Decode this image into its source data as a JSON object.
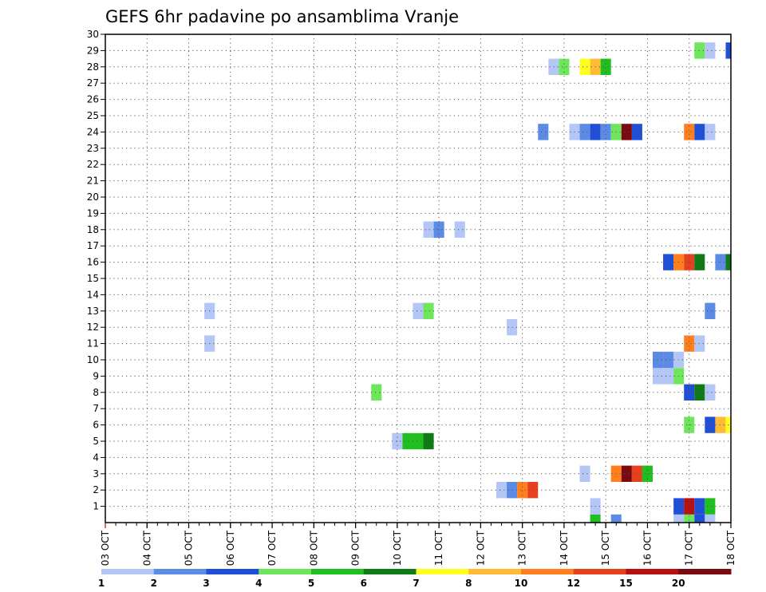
{
  "chart_data": {
    "type": "heatmap",
    "title": "GEFS 6hr padavine po ansamblima Vranje",
    "x_tick_labels": [
      "03 OCT",
      "04 OCT",
      "05 OCT",
      "06 OCT",
      "07 OCT",
      "08 OCT",
      "09 OCT",
      "10 OCT",
      "11 OCT",
      "12 OCT",
      "13 OCT",
      "14 OCT",
      "15 OCT",
      "16 OCT",
      "17 OCT",
      "18 OCT"
    ],
    "y_tick_labels": [
      "1",
      "2",
      "3",
      "4",
      "5",
      "6",
      "7",
      "8",
      "9",
      "10",
      "11",
      "12",
      "13",
      "14",
      "15",
      "16",
      "17",
      "18",
      "19",
      "20",
      "21",
      "22",
      "23",
      "24",
      "25",
      "26",
      "27",
      "28",
      "29",
      "30"
    ],
    "ylim": [
      0,
      30
    ],
    "xlim_steps": [
      0,
      60
    ],
    "grid": true,
    "colorbar": {
      "labels": [
        "1",
        "2",
        "3",
        "4",
        "5",
        "6",
        "7",
        "8",
        "10",
        "12",
        "15",
        "20"
      ],
      "colors": [
        "#b3c6f5",
        "#5c8be6",
        "#1f4fd6",
        "#6ee65c",
        "#1fbf1f",
        "#0f7a16",
        "#ffff1f",
        "#ffbb33",
        "#ff7f1f",
        "#e6401f",
        "#b80f0f",
        "#7a0a10"
      ]
    },
    "cells": [
      {
        "m": 0,
        "s": 47,
        "c": 5
      },
      {
        "m": 0,
        "s": 49,
        "c": 2
      },
      {
        "m": 0,
        "s": 55,
        "c": 1
      },
      {
        "m": 0,
        "s": 56,
        "c": 4
      },
      {
        "m": 0,
        "s": 57,
        "c": 3
      },
      {
        "m": 0,
        "s": 58,
        "c": 1
      },
      {
        "m": 1,
        "s": 47,
        "c": 1
      },
      {
        "m": 1,
        "s": 55,
        "c": 3
      },
      {
        "m": 1,
        "s": 56,
        "c": 11
      },
      {
        "m": 1,
        "s": 57,
        "c": 3
      },
      {
        "m": 1,
        "s": 58,
        "c": 5
      },
      {
        "m": 2,
        "s": 38,
        "c": 1
      },
      {
        "m": 2,
        "s": 39,
        "c": 2
      },
      {
        "m": 2,
        "s": 40,
        "c": 9
      },
      {
        "m": 2,
        "s": 41,
        "c": 10
      },
      {
        "m": 3,
        "s": 46,
        "c": 1
      },
      {
        "m": 3,
        "s": 49,
        "c": 9
      },
      {
        "m": 3,
        "s": 50,
        "c": 12
      },
      {
        "m": 3,
        "s": 51,
        "c": 10
      },
      {
        "m": 3,
        "s": 52,
        "c": 5
      },
      {
        "m": 5,
        "s": 28,
        "c": 1
      },
      {
        "m": 5,
        "s": 29,
        "c": 5
      },
      {
        "m": 5,
        "s": 30,
        "c": 5
      },
      {
        "m": 5,
        "s": 31,
        "c": 6
      },
      {
        "m": 6,
        "s": 56,
        "c": 4
      },
      {
        "m": 6,
        "s": 58,
        "c": 3
      },
      {
        "m": 6,
        "s": 59,
        "c": 8
      },
      {
        "m": 6,
        "s": 60,
        "c": 7
      },
      {
        "m": 8,
        "s": 26,
        "c": 4
      },
      {
        "m": 8,
        "s": 56,
        "c": 3
      },
      {
        "m": 8,
        "s": 57,
        "c": 6
      },
      {
        "m": 8,
        "s": 58,
        "c": 1
      },
      {
        "m": 9,
        "s": 53,
        "c": 1
      },
      {
        "m": 9,
        "s": 54,
        "c": 1
      },
      {
        "m": 9,
        "s": 55,
        "c": 4
      },
      {
        "m": 10,
        "s": 53,
        "c": 2
      },
      {
        "m": 10,
        "s": 54,
        "c": 2
      },
      {
        "m": 10,
        "s": 55,
        "c": 1
      },
      {
        "m": 11,
        "s": 10,
        "c": 1
      },
      {
        "m": 11,
        "s": 56,
        "c": 9
      },
      {
        "m": 11,
        "s": 57,
        "c": 1
      },
      {
        "m": 12,
        "s": 39,
        "c": 1
      },
      {
        "m": 13,
        "s": 10,
        "c": 1
      },
      {
        "m": 13,
        "s": 30,
        "c": 1
      },
      {
        "m": 13,
        "s": 31,
        "c": 4
      },
      {
        "m": 13,
        "s": 58,
        "c": 2
      },
      {
        "m": 16,
        "s": 54,
        "c": 3
      },
      {
        "m": 16,
        "s": 55,
        "c": 9
      },
      {
        "m": 16,
        "s": 56,
        "c": 10
      },
      {
        "m": 16,
        "s": 57,
        "c": 6
      },
      {
        "m": 16,
        "s": 59,
        "c": 2
      },
      {
        "m": 16,
        "s": 60,
        "c": 6
      },
      {
        "m": 18,
        "s": 31,
        "c": 1
      },
      {
        "m": 18,
        "s": 32,
        "c": 2
      },
      {
        "m": 18,
        "s": 34,
        "c": 1
      },
      {
        "m": 24,
        "s": 42,
        "c": 2
      },
      {
        "m": 24,
        "s": 45,
        "c": 1
      },
      {
        "m": 24,
        "s": 46,
        "c": 2
      },
      {
        "m": 24,
        "s": 47,
        "c": 3
      },
      {
        "m": 24,
        "s": 48,
        "c": 2
      },
      {
        "m": 24,
        "s": 49,
        "c": 4
      },
      {
        "m": 24,
        "s": 50,
        "c": 12
      },
      {
        "m": 24,
        "s": 51,
        "c": 3
      },
      {
        "m": 24,
        "s": 56,
        "c": 9
      },
      {
        "m": 24,
        "s": 57,
        "c": 3
      },
      {
        "m": 24,
        "s": 58,
        "c": 1
      },
      {
        "m": 28,
        "s": 43,
        "c": 1
      },
      {
        "m": 28,
        "s": 44,
        "c": 4
      },
      {
        "m": 28,
        "s": 46,
        "c": 7
      },
      {
        "m": 28,
        "s": 47,
        "c": 8
      },
      {
        "m": 28,
        "s": 48,
        "c": 5
      },
      {
        "m": 29,
        "s": 57,
        "c": 4
      },
      {
        "m": 29,
        "s": 58,
        "c": 1
      },
      {
        "m": 29,
        "s": 60,
        "c": 3
      }
    ]
  }
}
